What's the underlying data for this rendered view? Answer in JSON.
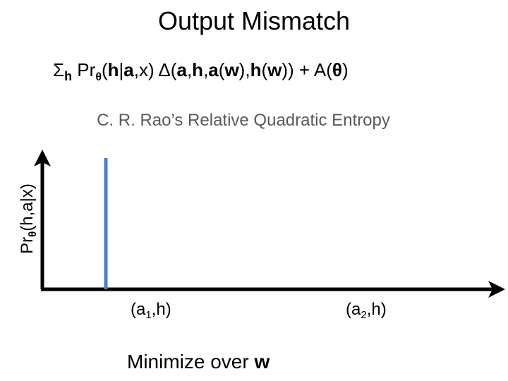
{
  "title": "Output Mismatch",
  "formula": [
    "Σ",
    "h",
    " Pr",
    "θ",
    "(",
    "h",
    "|",
    "a",
    ",x)  Δ(",
    "a",
    ",",
    "h",
    ",",
    "a",
    "(",
    "w",
    "),",
    "h",
    "(",
    "w",
    ")) + A(",
    "θ",
    ")"
  ],
  "subtitle": "C. R. Rao’s Relative Quadratic Entropy",
  "y_axis_label": [
    "Pr",
    "θ",
    "(h,a|x)"
  ],
  "x_labels": [
    [
      "(a",
      "1",
      ",h)"
    ],
    [
      "(a",
      "2",
      ",h)"
    ]
  ],
  "footer": [
    "Minimize over ",
    "w"
  ]
}
